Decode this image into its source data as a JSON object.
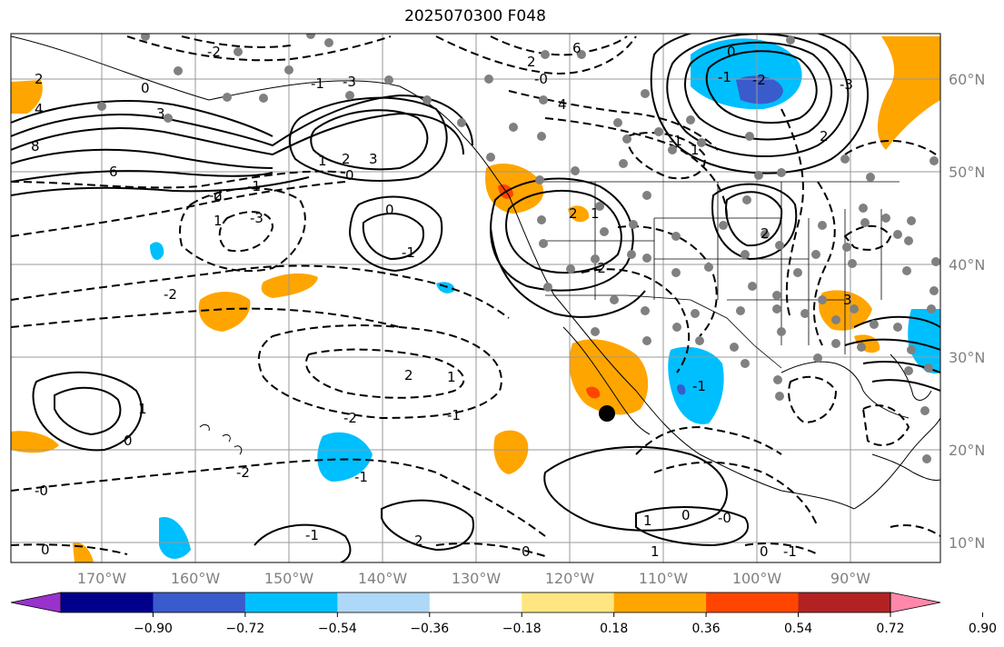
{
  "title": "2025070300 F048",
  "lon_ticks": [
    "170°W",
    "160°W",
    "150°W",
    "140°W",
    "130°W",
    "120°W",
    "110°W",
    "100°W",
    "90°W"
  ],
  "lat_ticks": [
    "60°N",
    "50°N",
    "40°N",
    "30°N",
    "20°N",
    "10°N"
  ],
  "colorbar": {
    "colors": [
      "#9932cc",
      "#00008b",
      "#3a5bcc",
      "#00bfff",
      "#add8f7",
      "#ffffff",
      "#ffe680",
      "#ffa500",
      "#ff4500",
      "#b22222",
      "#ff88aa"
    ],
    "ticks": [
      "−0.90",
      "−0.72",
      "−0.54",
      "−0.36",
      "−0.18",
      "0.18",
      "0.36",
      "0.54",
      "0.72",
      "0.90"
    ]
  },
  "contour_labels": [
    "2",
    "4",
    "0",
    "3",
    "8",
    "6",
    "-2",
    "-1",
    "-3",
    "1",
    "2",
    "3",
    "0",
    "-1",
    "-2",
    "-3",
    "0",
    "1",
    "-2",
    "-1",
    "0",
    "-2",
    "2",
    "1",
    "-1",
    "0",
    "-0",
    "1",
    "0",
    "-2",
    "-1",
    "-1",
    "2",
    "0",
    "1",
    "-0",
    "0",
    "0",
    "-1",
    "1",
    "2",
    "-0",
    "6",
    "4",
    "-2",
    "-1",
    "0",
    "2",
    "-3",
    "-1",
    "1",
    "-2",
    "2",
    "1",
    "-1",
    "2",
    "3"
  ],
  "marker": {
    "symbol": "black-dot"
  }
}
